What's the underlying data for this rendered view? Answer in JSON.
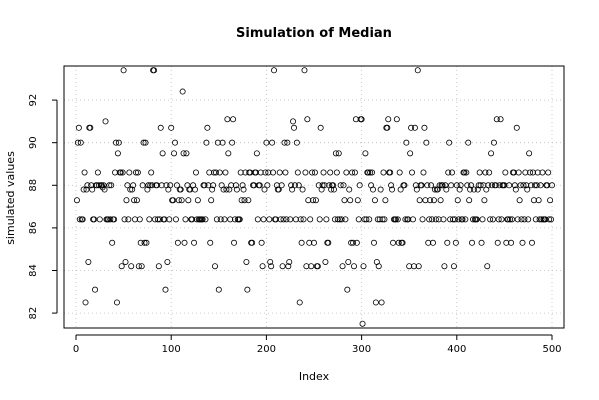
{
  "chart_data": {
    "type": "scatter",
    "title": "Simulation of Median",
    "xlabel": "Index",
    "ylabel": "simulated values",
    "xlim": [
      0,
      500
    ],
    "ylim": [
      81.3,
      93.6
    ],
    "xticks": [
      0,
      100,
      200,
      300,
      400,
      500
    ],
    "yticks": [
      82,
      84,
      86,
      88,
      90,
      92
    ],
    "grid": true,
    "point_style": "open-circle",
    "n": 500,
    "values": [
      87.3,
      90.0,
      90.7,
      86.4,
      90.0,
      86.4,
      86.4,
      87.8,
      88.6,
      82.5,
      87.8,
      88.0,
      84.4,
      90.7,
      90.7,
      88.0,
      87.8,
      86.4,
      86.4,
      83.1,
      88.0,
      88.0,
      88.6,
      88.0,
      86.4,
      88.0,
      88.0,
      87.9,
      88.0,
      87.8,
      91.0,
      86.4,
      86.4,
      86.4,
      88.0,
      86.4,
      88.0,
      85.3,
      86.4,
      86.4,
      88.6,
      90.0,
      82.5,
      89.5,
      90.0,
      88.6,
      88.6,
      84.2,
      88.6,
      93.4,
      86.4,
      84.4,
      87.3,
      88.0,
      86.4,
      88.6,
      87.8,
      84.2,
      87.8,
      88.0,
      87.3,
      86.4,
      88.6,
      87.3,
      88.6,
      84.2,
      86.4,
      85.3,
      84.2,
      88.0,
      90.0,
      85.3,
      90.0,
      85.3,
      87.8,
      88.0,
      86.4,
      88.0,
      88.6,
      88.0,
      93.4,
      93.4,
      86.4,
      88.0,
      88.0,
      86.4,
      84.2,
      86.4,
      90.7,
      88.0,
      89.5,
      86.4,
      86.4,
      83.1,
      88.0,
      84.4,
      87.8,
      86.4,
      88.0,
      90.7,
      87.3,
      87.3,
      89.5,
      90.0,
      86.4,
      88.0,
      85.3,
      87.3,
      87.8,
      87.8,
      87.3,
      92.4,
      89.5,
      85.3,
      86.4,
      89.5,
      88.0,
      87.3,
      87.8,
      87.8,
      86.4,
      86.4,
      88.0,
      85.3,
      87.8,
      88.6,
      86.4,
      87.3,
      86.4,
      86.4,
      86.4,
      86.4,
      86.4,
      88.0,
      88.0,
      86.4,
      90.0,
      90.7,
      88.0,
      88.6,
      85.3,
      87.3,
      87.8,
      88.0,
      88.6,
      84.2,
      88.6,
      86.4,
      90.0,
      83.1,
      88.6,
      86.4,
      88.0,
      90.0,
      87.8,
      86.4,
      88.6,
      87.8,
      91.1,
      89.5,
      87.8,
      86.4,
      88.0,
      90.0,
      91.1,
      85.3,
      86.4,
      88.0,
      87.8,
      86.4,
      86.4,
      86.4,
      88.6,
      87.3,
      88.0,
      87.8,
      87.3,
      88.6,
      84.4,
      83.1,
      87.3,
      88.6,
      88.6,
      85.3,
      85.3,
      88.0,
      88.0,
      88.6,
      88.6,
      89.5,
      86.4,
      88.0,
      88.0,
      88.6,
      85.3,
      84.2,
      86.4,
      87.8,
      88.6,
      90.0,
      88.0,
      88.6,
      86.4,
      84.4,
      84.2,
      90.0,
      88.6,
      93.4,
      86.4,
      86.4,
      88.0,
      87.8,
      87.8,
      88.6,
      86.4,
      88.0,
      84.2,
      86.4,
      90.0,
      88.6,
      86.4,
      90.0,
      84.2,
      84.4,
      86.4,
      88.0,
      87.8,
      91.0,
      90.7,
      88.0,
      86.4,
      90.0,
      88.6,
      88.0,
      82.5,
      86.4,
      85.3,
      87.8,
      86.4,
      93.4,
      88.6,
      84.2,
      91.1,
      87.3,
      85.3,
      86.4,
      84.2,
      88.6,
      87.3,
      85.3,
      88.6,
      87.3,
      84.2,
      84.2,
      88.0,
      86.4,
      90.7,
      87.8,
      88.0,
      88.6,
      88.0,
      84.4,
      86.4,
      85.3,
      85.3,
      88.0,
      88.6,
      87.8,
      88.0,
      88.0,
      87.8,
      86.4,
      89.5,
      88.6,
      86.4,
      89.5,
      86.4,
      88.0,
      86.4,
      84.2,
      88.0,
      87.3,
      86.4,
      88.6,
      83.1,
      84.4,
      87.8,
      87.3,
      85.3,
      88.6,
      85.3,
      84.2,
      88.6,
      91.1,
      85.3,
      87.3,
      86.4,
      88.0,
      91.1,
      91.1,
      81.5,
      84.2,
      86.4,
      89.5,
      86.4,
      88.6,
      88.6,
      86.4,
      88.6,
      88.0,
      88.6,
      87.8,
      85.3,
      87.3,
      82.5,
      84.4,
      86.4,
      84.2,
      86.4,
      87.8,
      82.5,
      86.4,
      88.6,
      86.4,
      87.3,
      90.7,
      90.7,
      91.1,
      88.6,
      88.6,
      88.0,
      87.8,
      85.3,
      86.4,
      86.4,
      86.4,
      91.1,
      86.4,
      85.3,
      88.6,
      87.8,
      85.3,
      85.3,
      88.0,
      88.0,
      86.4,
      90.0,
      86.4,
      86.4,
      84.2,
      89.5,
      90.7,
      88.6,
      86.4,
      84.2,
      90.7,
      88.0,
      87.8,
      93.4,
      84.2,
      87.3,
      88.0,
      88.0,
      86.4,
      88.6,
      90.7,
      87.3,
      90.0,
      88.0,
      85.3,
      86.4,
      87.3,
      88.0,
      86.4,
      85.3,
      87.3,
      87.8,
      86.4,
      87.8,
      87.8,
      86.4,
      88.0,
      87.3,
      88.0,
      88.0,
      86.4,
      84.2,
      88.0,
      87.8,
      85.3,
      88.6,
      90.0,
      86.4,
      88.0,
      88.6,
      86.4,
      84.2,
      86.4,
      85.3,
      88.0,
      87.3,
      86.4,
      87.8,
      88.0,
      86.4,
      86.4,
      88.6,
      88.6,
      86.4,
      88.6,
      88.0,
      90.0,
      87.3,
      87.8,
      88.0,
      85.3,
      86.4,
      87.8,
      86.4,
      86.4,
      86.4,
      87.8,
      88.0,
      88.6,
      88.0,
      85.3,
      86.4,
      88.0,
      87.3,
      88.6,
      87.8,
      84.2,
      88.0,
      88.6,
      86.4,
      89.5,
      88.0,
      86.4,
      90.0,
      88.0,
      88.0,
      91.1,
      85.3,
      86.4,
      88.0,
      91.1,
      86.4,
      88.0,
      88.0,
      88.0,
      88.6,
      85.3,
      86.4,
      86.4,
      88.0,
      86.4,
      85.3,
      86.4,
      88.6,
      88.6,
      88.0,
      87.8,
      90.7,
      86.4,
      88.6,
      87.3,
      88.0,
      86.4,
      85.3,
      88.0,
      86.4,
      88.6,
      88.0,
      87.8,
      86.4,
      89.5,
      88.6,
      88.0,
      85.3,
      88.6,
      87.3,
      88.0,
      86.4,
      88.0,
      88.6,
      87.3,
      86.4,
      88.0,
      86.4,
      88.6,
      86.4,
      86.4,
      86.4,
      88.0,
      88.0,
      88.6,
      86.4,
      87.3,
      86.4,
      88.0
    ]
  }
}
